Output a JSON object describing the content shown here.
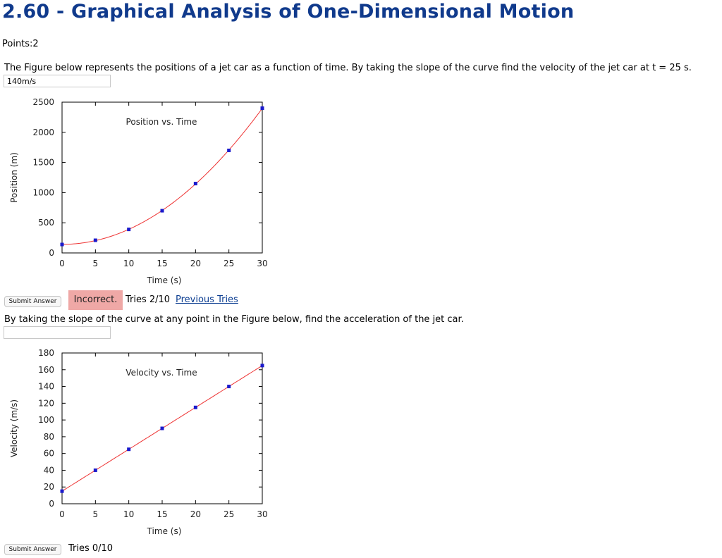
{
  "page": {
    "title": "2.60 - Graphical Analysis of One-Dimensional Motion",
    "points": "Points:2"
  },
  "q1": {
    "text": "The Figure below represents the positions of a jet car as a function of time. By taking the slope of the curve find the velocity of the jet car at t = 25 s.",
    "answer_value": "140m/s",
    "submit_label": "Submit Answer",
    "status_label": "Incorrect.",
    "tries_text": "Tries 2/10",
    "previous_tries_label": "Previous Tries"
  },
  "q2": {
    "text": "By taking the slope of the curve at any point in the Figure below, find the acceleration of the jet car.",
    "answer_value": "",
    "submit_label": "Submit Answer",
    "tries_text": "Tries 0/10"
  },
  "colors": {
    "title": "#103a8c",
    "link": "#0b3d91",
    "incorrect_bg": "#efa8a6",
    "curve": "#ee3333",
    "points": "#1a1acc"
  },
  "chart_data": [
    {
      "type": "scatter",
      "title": "Position vs. Time",
      "xlabel": "Time (s)",
      "ylabel": "Position (m)",
      "xlim": [
        0,
        30
      ],
      "ylim": [
        0,
        2500
      ],
      "xticks": [
        0,
        5,
        10,
        15,
        20,
        25,
        30
      ],
      "yticks": [
        0,
        500,
        1000,
        1500,
        2000,
        2500
      ],
      "points": [
        [
          0,
          140
        ],
        [
          5,
          210
        ],
        [
          10,
          390
        ],
        [
          15,
          700
        ],
        [
          20,
          1150
        ],
        [
          25,
          1700
        ],
        [
          30,
          2400
        ]
      ],
      "fit": "quadratic"
    },
    {
      "type": "scatter",
      "title": "Velocity vs. Time",
      "xlabel": "Time (s)",
      "ylabel": "Velocity (m/s)",
      "xlim": [
        0,
        30
      ],
      "ylim": [
        0,
        180
      ],
      "xticks": [
        0,
        5,
        10,
        15,
        20,
        25,
        30
      ],
      "yticks": [
        0,
        20,
        40,
        60,
        80,
        100,
        120,
        140,
        160,
        180
      ],
      "points": [
        [
          0,
          15
        ],
        [
          5,
          40
        ],
        [
          10,
          65
        ],
        [
          15,
          90
        ],
        [
          20,
          115
        ],
        [
          25,
          140
        ],
        [
          30,
          165
        ]
      ],
      "fit": "linear"
    }
  ]
}
